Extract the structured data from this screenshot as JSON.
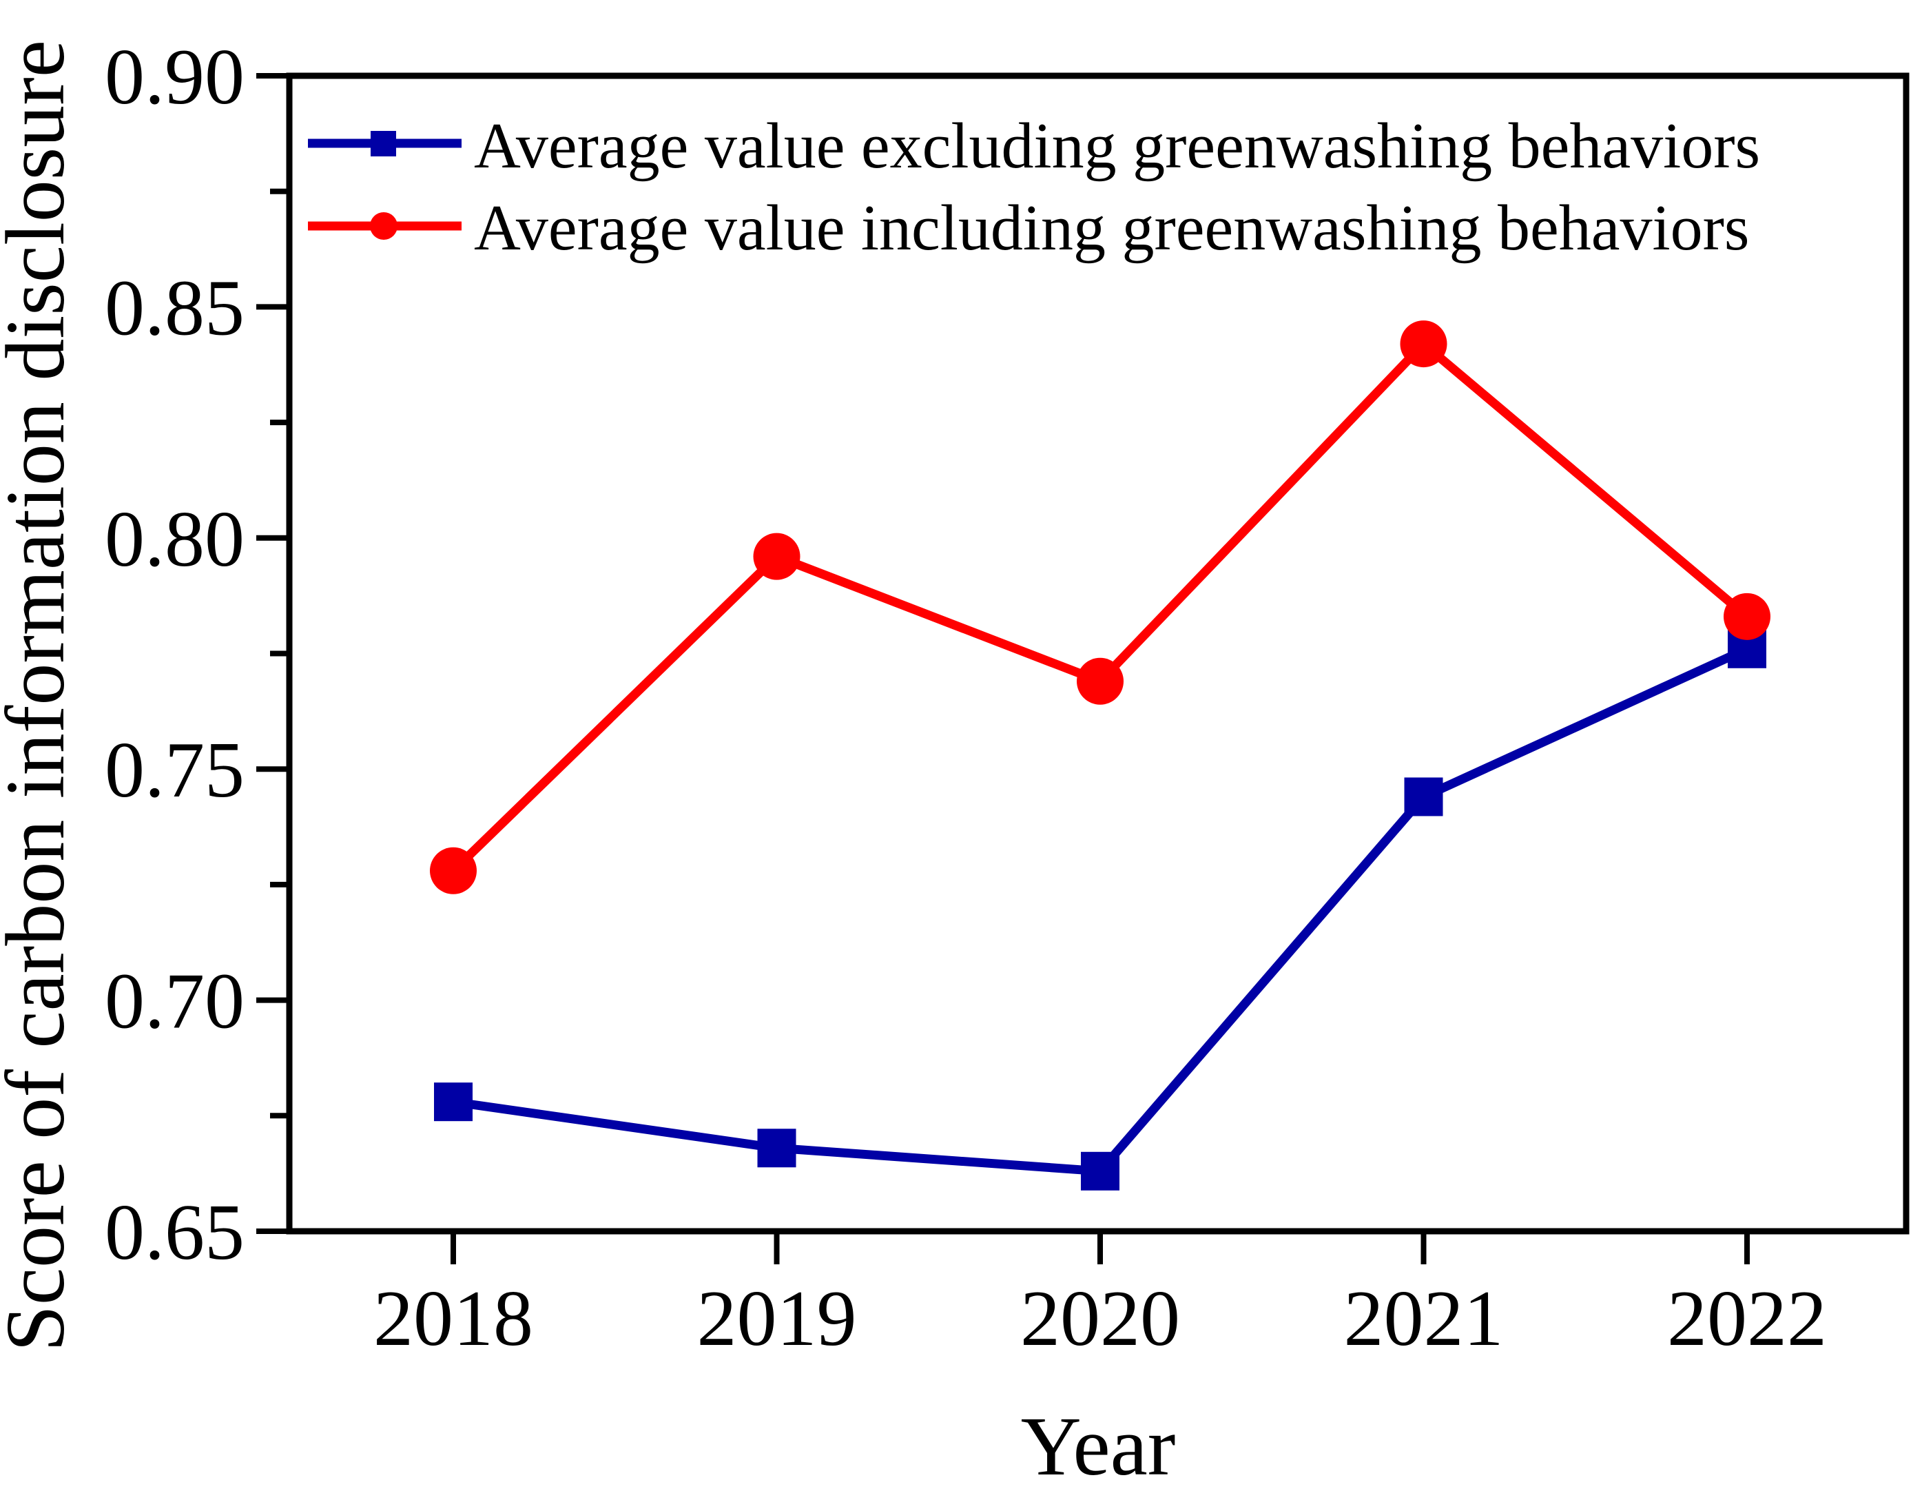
{
  "chart_data": {
    "type": "line",
    "title": "",
    "xlabel": "Year",
    "ylabel": "Score of carbon information disclosure",
    "x": [
      2018,
      2019,
      2020,
      2021,
      2022
    ],
    "xtick_labels": [
      "2018",
      "2019",
      "2020",
      "2021",
      "2022"
    ],
    "ylim": [
      0.65,
      0.9
    ],
    "yticks": [
      0.9,
      0.85,
      0.8,
      0.75,
      0.7,
      0.65
    ],
    "ytick_labels": [
      "0.90",
      "0.85",
      "0.80",
      "0.75",
      "0.70",
      "0.65"
    ],
    "y_minor_step": 0.025,
    "grid": false,
    "legend_position": "inside-top-left",
    "axis_color": "#000000",
    "series": [
      {
        "name": "Average value excluding greenwashing behaviors",
        "color": "#0000A5",
        "marker": "square",
        "values": [
          0.678,
          0.668,
          0.663,
          0.744,
          0.776
        ]
      },
      {
        "name": "Average value including greenwashing behaviors",
        "color": "#FF0000",
        "marker": "circle",
        "values": [
          0.728,
          0.796,
          0.769,
          0.842,
          0.783
        ]
      }
    ]
  }
}
